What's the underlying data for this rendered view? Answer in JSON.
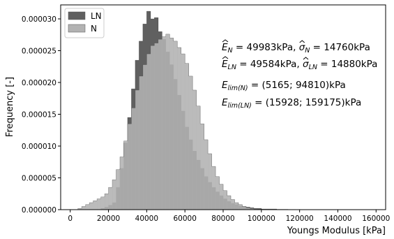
{
  "chart_data": {
    "type": "bar",
    "histogram": true,
    "xlabel": "Youngs Modulus [kPa]",
    "ylabel": "Frequency [-]",
    "xlim": [
      -5000,
      165000
    ],
    "ylim": [
      0,
      3.22e-05
    ],
    "xticks": [
      0,
      20000,
      40000,
      60000,
      80000,
      100000,
      120000,
      140000,
      160000
    ],
    "xtick_labels": [
      "0",
      "20000",
      "40000",
      "60000",
      "80000",
      "100000",
      "120000",
      "140000",
      "160000"
    ],
    "yticks": [
      0,
      5e-06,
      1e-05,
      1.5e-05,
      2e-05,
      2.5e-05,
      3e-05
    ],
    "ytick_labels": [
      "0.000000",
      "0.000005",
      "0.000010",
      "0.000015",
      "0.000020",
      "0.000025",
      "0.000030"
    ],
    "grid": false,
    "legend_position": "top-left",
    "series": [
      {
        "name": "LN",
        "color": "#606060",
        "bin_start": 16000,
        "bin_width": 2000,
        "values": [
          2e-07,
          4e-07,
          7e-07,
          1.1e-06,
          3.5e-06,
          6.5e-06,
          1.05e-05,
          1.45e-05,
          1.9e-05,
          2.35e-05,
          2.65e-05,
          2.92e-05,
          3.12e-05,
          3e-05,
          3.02e-05,
          2.8e-05,
          2.68e-05,
          2.48e-05,
          2.28e-05,
          2.05e-05,
          1.8e-05,
          1.55e-05,
          1.3e-05,
          1.1e-05,
          9.2e-06,
          7.8e-06,
          6.5e-06,
          5.2e-06,
          4.3e-06,
          3.5e-06,
          2.8e-06,
          2.2e-06,
          1.7e-06,
          1.3e-06,
          1e-06,
          8e-07,
          6e-07,
          5e-07,
          4e-07,
          3e-07,
          2e-07,
          2e-07,
          1e-07,
          1e-07,
          1e-07,
          1e-07,
          5e-08,
          5e-08,
          5e-08,
          3e-08,
          3e-08,
          2e-08,
          2e-08,
          2e-08,
          2e-08,
          2e-08,
          1e-08,
          1e-08,
          1e-08,
          1e-08,
          1e-08,
          1e-08,
          1e-08,
          1e-08,
          1e-08,
          1e-08,
          1e-08,
          1e-08,
          1e-08,
          1e-08,
          1e-08,
          1e-08
        ]
      },
      {
        "name": "N",
        "color": "#b2b2b2",
        "bin_start": 4000,
        "bin_width": 2000,
        "values": [
          2e-07,
          5e-07,
          8e-07,
          1.1e-06,
          1.4e-06,
          1.7e-06,
          2e-06,
          2.5e-06,
          3.5e-06,
          4.7e-06,
          6.3e-06,
          8.3e-06,
          1.08e-05,
          1.35e-05,
          1.6e-05,
          1.88e-05,
          2.1e-05,
          2.28e-05,
          2.45e-05,
          2.58e-05,
          2.62e-05,
          2.68e-05,
          2.72e-05,
          2.76e-05,
          2.7e-05,
          2.65e-05,
          2.55e-05,
          2.45e-05,
          2.3e-05,
          2.1e-05,
          1.88e-05,
          1.63e-05,
          1.35e-05,
          1.1e-05,
          8.8e-06,
          6.8e-06,
          5.2e-06,
          4e-06,
          3e-06,
          2.2e-06,
          1.6e-06,
          1.1e-06,
          8e-07,
          5e-07,
          3e-07,
          2e-07,
          1e-07
        ]
      }
    ],
    "annotations": [
      {
        "type": "E",
        "sub": "N",
        "mean": "49983kPa",
        "sigma_sub": "N",
        "sigma": "14760kPa"
      },
      {
        "type": "E",
        "sub": "LN",
        "mean": "49584kPa",
        "sigma_sub": "LN",
        "sigma": "14880kPa"
      },
      {
        "type": "lim",
        "sub": "lim(N)",
        "value": "(5165; 94810)kPa"
      },
      {
        "type": "lim",
        "sub": "lim(LN)",
        "value": "(15928; 159175)kPa"
      }
    ]
  }
}
